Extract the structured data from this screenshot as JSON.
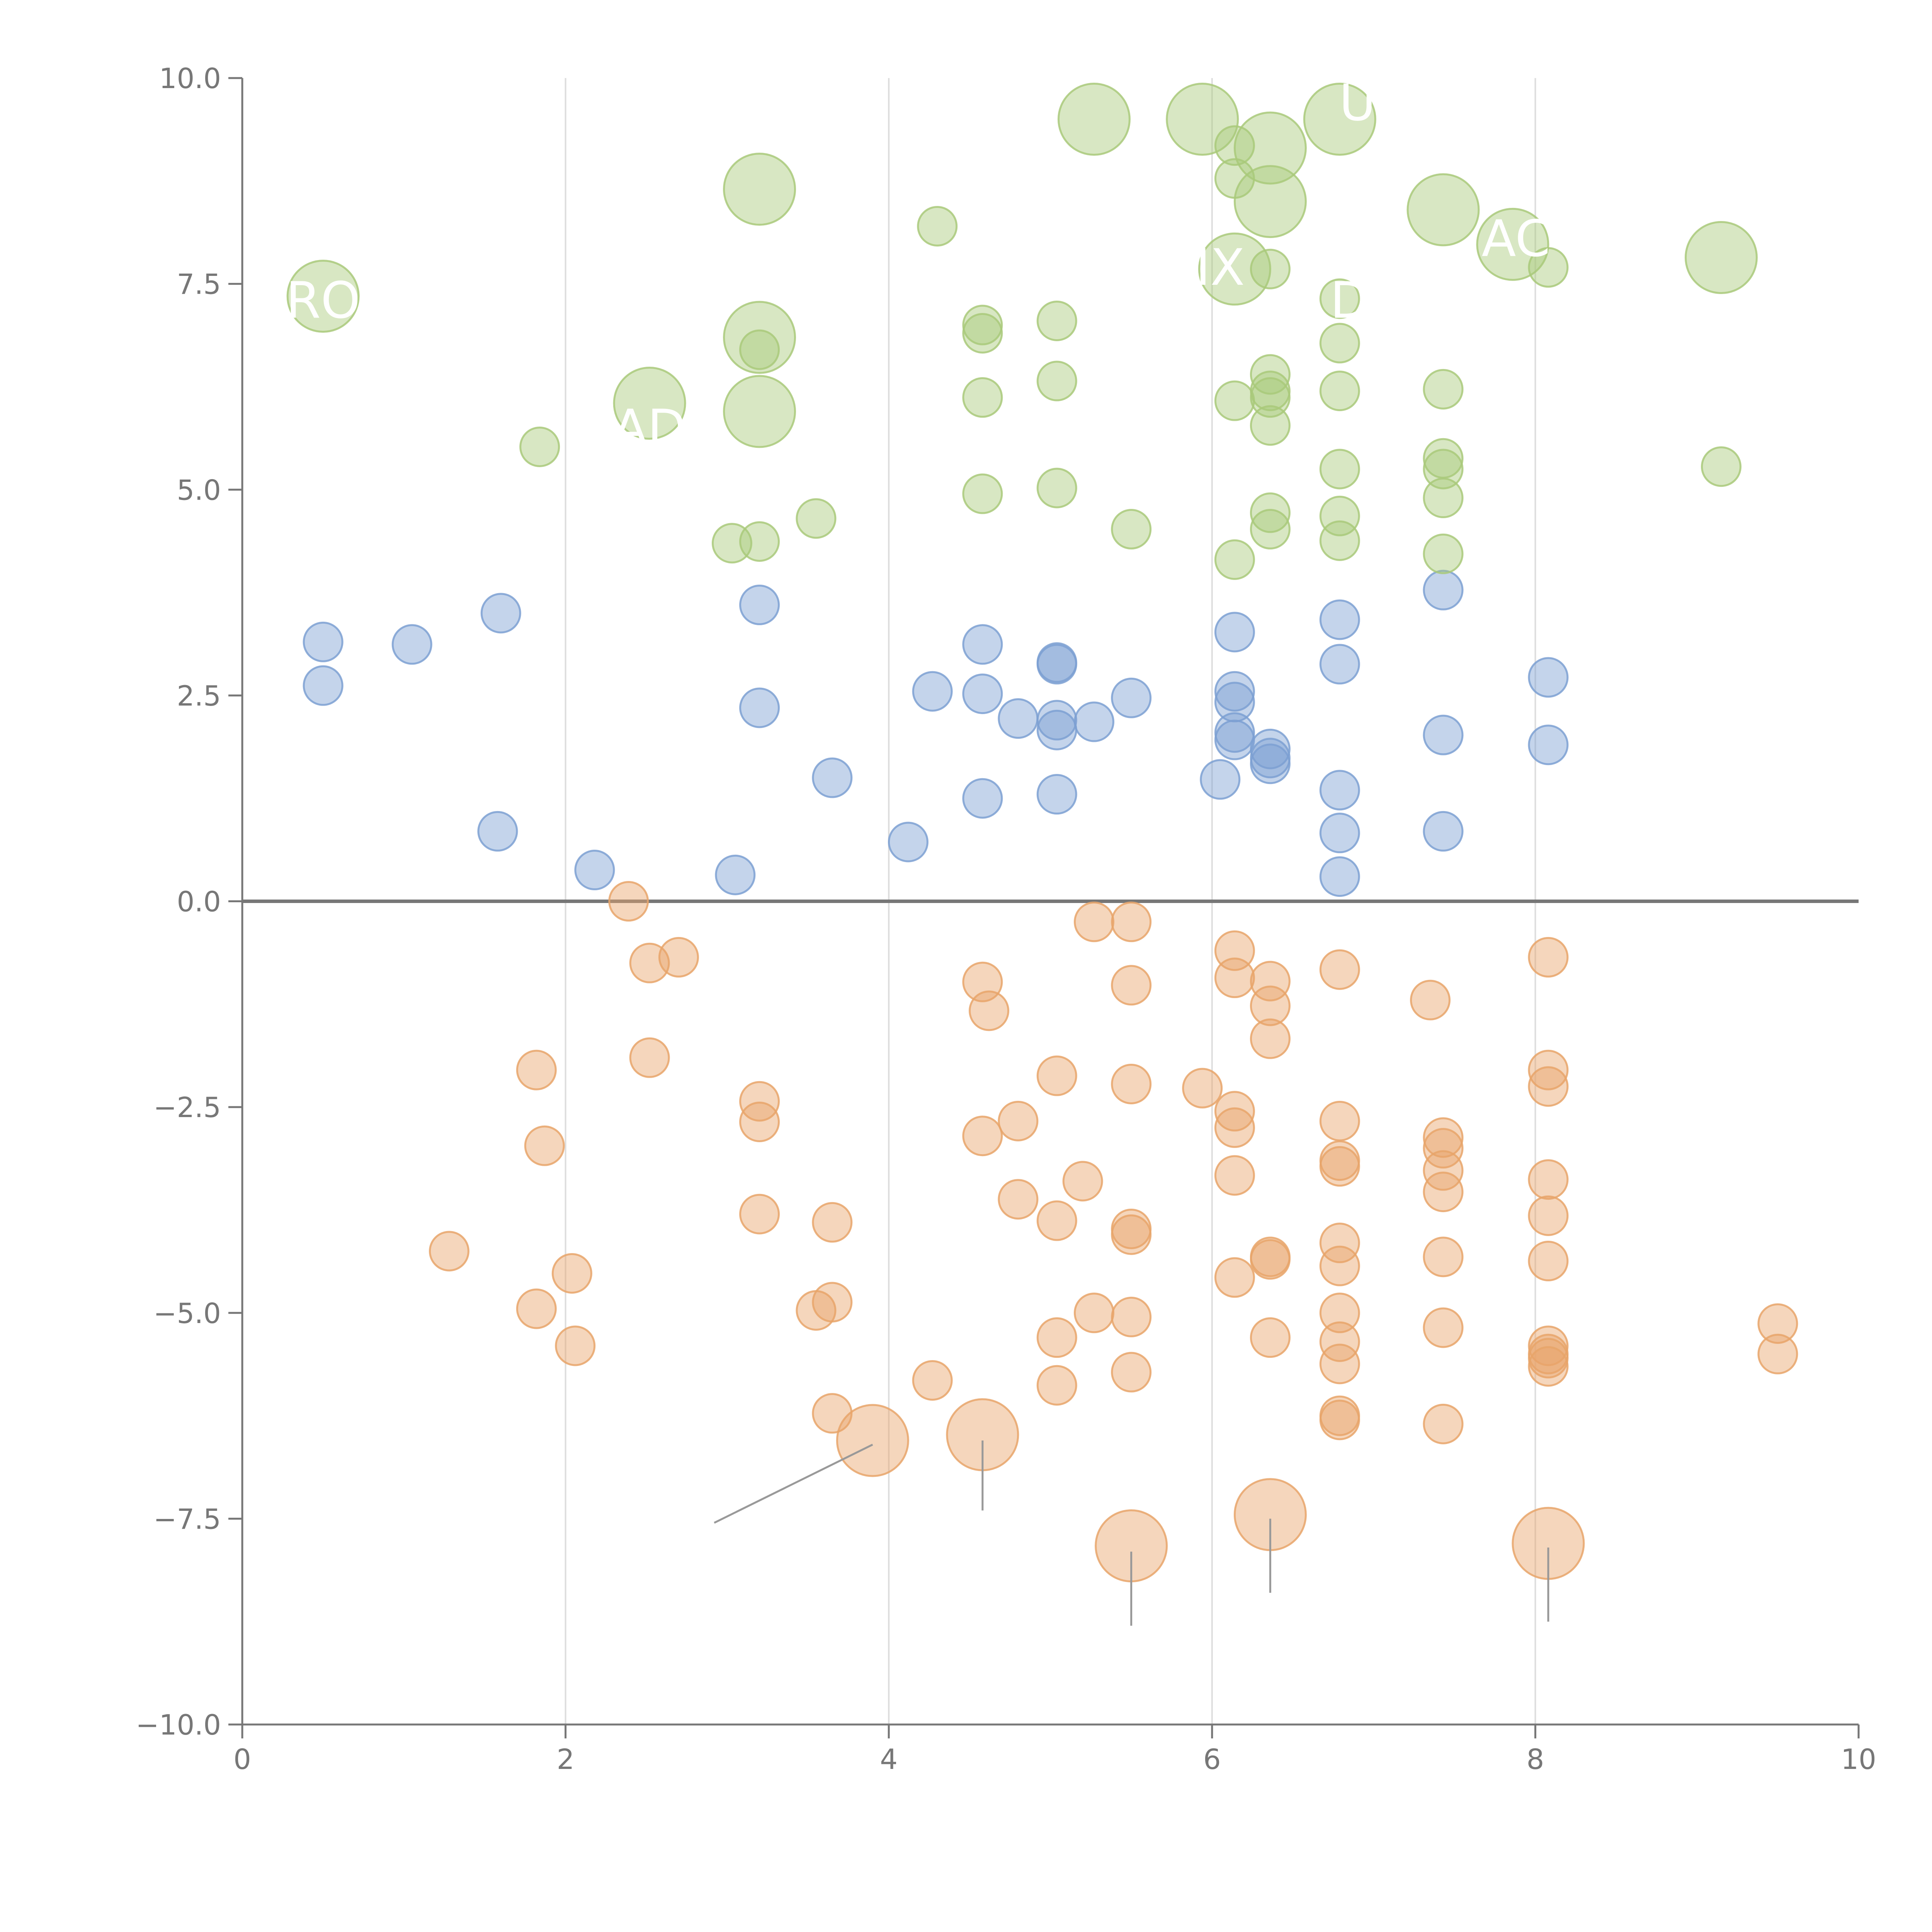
{
  "colors": {
    "blue": "#7da0d2",
    "green": "#a9c97a",
    "orange": "#e8a46a",
    "axis": "#777777",
    "grid": "#dddddd",
    "zero_line": "#777777",
    "leader": "#999999",
    "leader_light": "#ffffff"
  },
  "chart_data": {
    "type": "scatter",
    "title": "",
    "xlabel": "",
    "ylabel": "",
    "xlim": [
      0,
      10
    ],
    "ylim": [
      -10,
      10
    ],
    "x_ticks": [
      "0",
      "2",
      "4",
      "6",
      "8",
      "10"
    ],
    "y_ticks": [
      "10.0",
      "7.5",
      "5.0",
      "2.5",
      "0.0",
      "−2.5",
      "−5.0",
      "−7.5",
      "−10.0"
    ],
    "grid": "vertical lines at x = 2, 4, 6, 8",
    "series": [
      {
        "name": "blue",
        "color": "blue",
        "points": [
          {
            "x": 0.5,
            "y": 3.15
          },
          {
            "x": 0.5,
            "y": 2.62
          },
          {
            "x": 1.05,
            "y": 3.12
          },
          {
            "x": 1.6,
            "y": 3.5
          },
          {
            "x": 1.58,
            "y": 0.85
          },
          {
            "x": 2.18,
            "y": 0.38
          },
          {
            "x": 3.05,
            "y": 0.32
          },
          {
            "x": 3.2,
            "y": 3.6
          },
          {
            "x": 3.2,
            "y": 2.35
          },
          {
            "x": 3.65,
            "y": 1.5
          },
          {
            "x": 4.12,
            "y": 0.72
          },
          {
            "x": 4.27,
            "y": 2.55
          },
          {
            "x": 4.58,
            "y": 3.12
          },
          {
            "x": 4.58,
            "y": 2.52
          },
          {
            "x": 4.58,
            "y": 1.25
          },
          {
            "x": 4.8,
            "y": 2.22
          },
          {
            "x": 5.04,
            "y": 2.9
          },
          {
            "x": 5.04,
            "y": 2.88
          },
          {
            "x": 5.04,
            "y": 2.2
          },
          {
            "x": 5.04,
            "y": 2.08
          },
          {
            "x": 5.04,
            "y": 1.3
          },
          {
            "x": 5.27,
            "y": 2.18
          },
          {
            "x": 5.5,
            "y": 2.47
          },
          {
            "x": 6.05,
            "y": 1.48
          },
          {
            "x": 6.14,
            "y": 3.27
          },
          {
            "x": 6.14,
            "y": 2.55
          },
          {
            "x": 6.14,
            "y": 2.42
          },
          {
            "x": 6.14,
            "y": 2.05
          },
          {
            "x": 6.14,
            "y": 1.96
          },
          {
            "x": 6.36,
            "y": 1.85
          },
          {
            "x": 6.36,
            "y": 1.74
          },
          {
            "x": 6.36,
            "y": 1.67
          },
          {
            "x": 6.79,
            "y": 3.42
          },
          {
            "x": 6.79,
            "y": 2.88
          },
          {
            "x": 6.79,
            "y": 1.35
          },
          {
            "x": 6.79,
            "y": 0.83
          },
          {
            "x": 6.79,
            "y": 0.3
          },
          {
            "x": 7.43,
            "y": 3.78
          },
          {
            "x": 7.43,
            "y": 2.02
          },
          {
            "x": 7.43,
            "y": 0.85
          },
          {
            "x": 8.08,
            "y": 2.72
          },
          {
            "x": 8.08,
            "y": 1.9
          }
        ]
      },
      {
        "name": "green",
        "color": "green",
        "points": [
          {
            "x": 0.5,
            "y": 7.35,
            "size": "large"
          },
          {
            "x": 1.84,
            "y": 5.52
          },
          {
            "x": 2.52,
            "y": 6.05,
            "size": "large"
          },
          {
            "x": 3.03,
            "y": 4.35
          },
          {
            "x": 3.2,
            "y": 8.65,
            "size": "large"
          },
          {
            "x": 3.2,
            "y": 6.85,
            "size": "large"
          },
          {
            "x": 3.2,
            "y": 6.7
          },
          {
            "x": 3.2,
            "y": 5.95,
            "size": "large"
          },
          {
            "x": 3.2,
            "y": 4.37
          },
          {
            "x": 3.55,
            "y": 4.65
          },
          {
            "x": 4.3,
            "y": 8.2
          },
          {
            "x": 4.58,
            "y": 7.0
          },
          {
            "x": 4.58,
            "y": 6.9
          },
          {
            "x": 4.58,
            "y": 6.12
          },
          {
            "x": 4.58,
            "y": 4.95
          },
          {
            "x": 5.04,
            "y": 7.05
          },
          {
            "x": 5.04,
            "y": 6.32
          },
          {
            "x": 5.04,
            "y": 5.02
          },
          {
            "x": 5.27,
            "y": 9.5,
            "size": "large"
          },
          {
            "x": 5.5,
            "y": 4.52
          },
          {
            "x": 5.94,
            "y": 9.5,
            "size": "large"
          },
          {
            "x": 6.14,
            "y": 9.18
          },
          {
            "x": 6.14,
            "y": 8.78
          },
          {
            "x": 6.14,
            "y": 7.68,
            "size": "large"
          },
          {
            "x": 6.14,
            "y": 6.08
          },
          {
            "x": 6.14,
            "y": 4.15
          },
          {
            "x": 6.36,
            "y": 9.15,
            "size": "large"
          },
          {
            "x": 6.36,
            "y": 8.5,
            "size": "large"
          },
          {
            "x": 6.36,
            "y": 7.68
          },
          {
            "x": 6.36,
            "y": 6.4
          },
          {
            "x": 6.36,
            "y": 6.2
          },
          {
            "x": 6.36,
            "y": 6.12
          },
          {
            "x": 6.36,
            "y": 5.78
          },
          {
            "x": 6.36,
            "y": 4.72
          },
          {
            "x": 6.36,
            "y": 4.52
          },
          {
            "x": 6.79,
            "y": 9.5,
            "size": "large"
          },
          {
            "x": 6.79,
            "y": 7.32
          },
          {
            "x": 6.79,
            "y": 6.78
          },
          {
            "x": 6.79,
            "y": 6.2
          },
          {
            "x": 6.79,
            "y": 5.25
          },
          {
            "x": 6.79,
            "y": 4.68
          },
          {
            "x": 6.79,
            "y": 4.38
          },
          {
            "x": 7.43,
            "y": 8.4,
            "size": "large"
          },
          {
            "x": 7.43,
            "y": 6.22
          },
          {
            "x": 7.43,
            "y": 5.38
          },
          {
            "x": 7.43,
            "y": 5.25
          },
          {
            "x": 7.43,
            "y": 4.9
          },
          {
            "x": 7.43,
            "y": 4.22
          },
          {
            "x": 7.86,
            "y": 7.98,
            "size": "large"
          },
          {
            "x": 8.08,
            "y": 7.7
          },
          {
            "x": 9.15,
            "y": 7.82,
            "size": "large"
          },
          {
            "x": 9.15,
            "y": 5.28
          }
        ]
      },
      {
        "name": "orange",
        "color": "orange",
        "points": [
          {
            "x": 1.28,
            "y": -4.25
          },
          {
            "x": 1.82,
            "y": -2.05
          },
          {
            "x": 1.82,
            "y": -4.95
          },
          {
            "x": 1.87,
            "y": -2.97
          },
          {
            "x": 2.04,
            "y": -4.52
          },
          {
            "x": 2.06,
            "y": -5.4
          },
          {
            "x": 2.39,
            "y": 0.0
          },
          {
            "x": 2.52,
            "y": -0.75
          },
          {
            "x": 2.52,
            "y": -1.9
          },
          {
            "x": 2.7,
            "y": -0.68
          },
          {
            "x": 3.2,
            "y": -2.43
          },
          {
            "x": 3.2,
            "y": -2.68
          },
          {
            "x": 3.2,
            "y": -3.8
          },
          {
            "x": 3.55,
            "y": -4.97
          },
          {
            "x": 3.65,
            "y": -3.9
          },
          {
            "x": 3.65,
            "y": -4.87
          },
          {
            "x": 3.65,
            "y": -6.22
          },
          {
            "x": 3.9,
            "y": -6.55,
            "size": "large"
          },
          {
            "x": 4.27,
            "y": -5.82
          },
          {
            "x": 4.58,
            "y": -0.98
          },
          {
            "x": 4.62,
            "y": -1.33
          },
          {
            "x": 4.58,
            "y": -2.85
          },
          {
            "x": 4.58,
            "y": -6.48,
            "size": "large"
          },
          {
            "x": 4.8,
            "y": -2.67
          },
          {
            "x": 4.8,
            "y": -3.62
          },
          {
            "x": 5.04,
            "y": -2.12
          },
          {
            "x": 5.04,
            "y": -3.88
          },
          {
            "x": 5.04,
            "y": -5.3
          },
          {
            "x": 5.04,
            "y": -5.88
          },
          {
            "x": 5.2,
            "y": -3.4
          },
          {
            "x": 5.27,
            "y": -0.25
          },
          {
            "x": 5.27,
            "y": -5.0
          },
          {
            "x": 5.5,
            "y": -0.25
          },
          {
            "x": 5.5,
            "y": -1.02
          },
          {
            "x": 5.5,
            "y": -2.22
          },
          {
            "x": 5.5,
            "y": -3.98
          },
          {
            "x": 5.5,
            "y": -4.05
          },
          {
            "x": 5.5,
            "y": -5.05
          },
          {
            "x": 5.5,
            "y": -5.72
          },
          {
            "x": 5.5,
            "y": -7.83,
            "size": "large"
          },
          {
            "x": 5.94,
            "y": -2.27
          },
          {
            "x": 6.14,
            "y": -0.6
          },
          {
            "x": 6.14,
            "y": -0.93
          },
          {
            "x": 6.14,
            "y": -2.55
          },
          {
            "x": 6.14,
            "y": -2.75
          },
          {
            "x": 6.14,
            "y": -3.33
          },
          {
            "x": 6.14,
            "y": -4.57
          },
          {
            "x": 6.36,
            "y": -0.97
          },
          {
            "x": 6.36,
            "y": -1.27
          },
          {
            "x": 6.36,
            "y": -1.67
          },
          {
            "x": 6.36,
            "y": -4.32
          },
          {
            "x": 6.36,
            "y": -4.35
          },
          {
            "x": 6.36,
            "y": -5.3
          },
          {
            "x": 6.36,
            "y": -7.45,
            "size": "large"
          },
          {
            "x": 6.79,
            "y": -0.83
          },
          {
            "x": 6.79,
            "y": -2.67
          },
          {
            "x": 6.79,
            "y": -3.15
          },
          {
            "x": 6.79,
            "y": -3.22
          },
          {
            "x": 6.79,
            "y": -4.15
          },
          {
            "x": 6.79,
            "y": -4.43
          },
          {
            "x": 6.79,
            "y": -5.0
          },
          {
            "x": 6.79,
            "y": -5.35
          },
          {
            "x": 6.79,
            "y": -5.62
          },
          {
            "x": 6.79,
            "y": -6.25
          },
          {
            "x": 6.79,
            "y": -6.3
          },
          {
            "x": 7.35,
            "y": -1.2
          },
          {
            "x": 7.43,
            "y": -2.87
          },
          {
            "x": 7.43,
            "y": -3.0
          },
          {
            "x": 7.43,
            "y": -3.27
          },
          {
            "x": 7.43,
            "y": -3.53
          },
          {
            "x": 7.43,
            "y": -4.32
          },
          {
            "x": 7.43,
            "y": -5.18
          },
          {
            "x": 7.43,
            "y": -6.35
          },
          {
            "x": 8.08,
            "y": -0.68
          },
          {
            "x": 8.08,
            "y": -2.05
          },
          {
            "x": 8.08,
            "y": -2.25
          },
          {
            "x": 8.08,
            "y": -3.38
          },
          {
            "x": 8.08,
            "y": -3.82
          },
          {
            "x": 8.08,
            "y": -4.37
          },
          {
            "x": 8.08,
            "y": -5.4
          },
          {
            "x": 8.08,
            "y": -5.5
          },
          {
            "x": 8.08,
            "y": -5.55
          },
          {
            "x": 8.08,
            "y": -5.65
          },
          {
            "x": 8.08,
            "y": -7.8,
            "size": "large"
          },
          {
            "x": 9.5,
            "y": -5.13
          },
          {
            "x": 9.5,
            "y": -5.5
          }
        ]
      }
    ],
    "annotations": [
      {
        "text": "RO",
        "x": 0.5,
        "y": 7.3
      },
      {
        "text": "AD",
        "x": 2.52,
        "y": 5.75
      },
      {
        "text": "IX",
        "x": 6.05,
        "y": 7.7
      },
      {
        "text": "U",
        "x": 6.9,
        "y": 9.7
      },
      {
        "text": "AC",
        "x": 7.88,
        "y": 8.05
      },
      {
        "text": "D",
        "x": 6.85,
        "y": 7.3
      }
    ],
    "leader_lines": [
      {
        "from": [
          3.9,
          -6.6
        ],
        "to": [
          2.92,
          -7.55
        ]
      },
      {
        "from": [
          4.58,
          -6.55
        ],
        "to": [
          4.58,
          -7.4
        ]
      },
      {
        "from": [
          5.5,
          -7.9
        ],
        "to": [
          5.5,
          -8.8
        ]
      },
      {
        "from": [
          6.36,
          -7.5
        ],
        "to": [
          6.36,
          -8.4
        ]
      },
      {
        "from": [
          8.08,
          -7.85
        ],
        "to": [
          8.08,
          -8.75
        ]
      }
    ]
  }
}
